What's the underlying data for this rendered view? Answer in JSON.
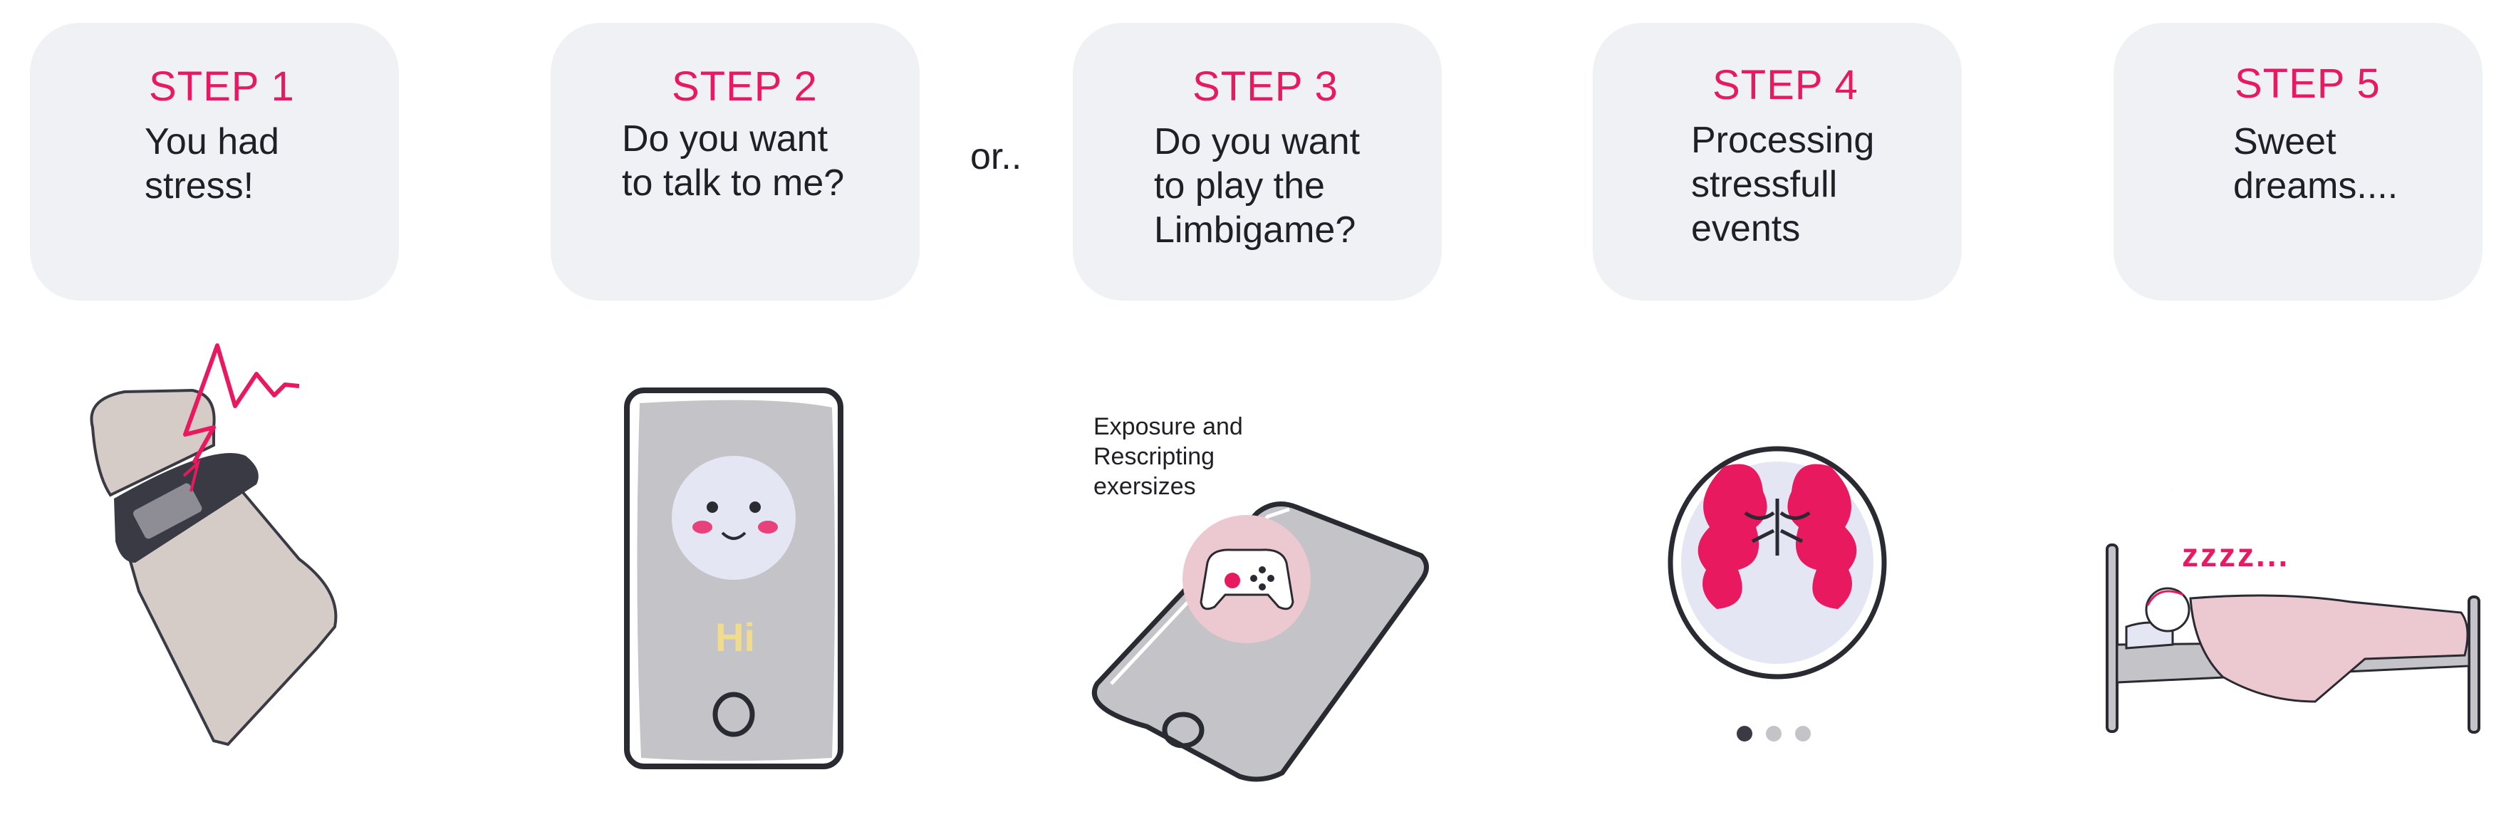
{
  "steps": [
    {
      "title": "STEP 1",
      "text": "You had\nstress!"
    },
    {
      "title": "STEP 2",
      "text": "Do you want\nto talk to me?"
    },
    {
      "title": "STEP 3",
      "text": "Do you want\nto play the\nLimbigame?"
    },
    {
      "title": "STEP 4",
      "text": "Processing\nstressfull\nevents"
    },
    {
      "title": "STEP 5",
      "text": "Sweet\ndreams...."
    }
  ],
  "connector_text": "or..",
  "phone_greeting": "Hi",
  "game_note": "Exposure and\nRescripting\nexersizes",
  "sleep_text": "zzzz...",
  "pagination": {
    "total": 3,
    "active": 1
  },
  "colors": {
    "accent": "#e8195f",
    "card_bg": "#eff1f4",
    "dark": "#3a3a44",
    "device_gray": "#c4c3c8",
    "skin": "#d6ccc7",
    "pink_light": "#ecc9d0",
    "moon": "#f6d466"
  },
  "icons": [
    "fitness-band-icon",
    "stress-lightning-icon",
    "phone-face-icon",
    "gamepad-icon",
    "tablet-icon",
    "brain-icon",
    "moon-icon",
    "bed-icon"
  ]
}
